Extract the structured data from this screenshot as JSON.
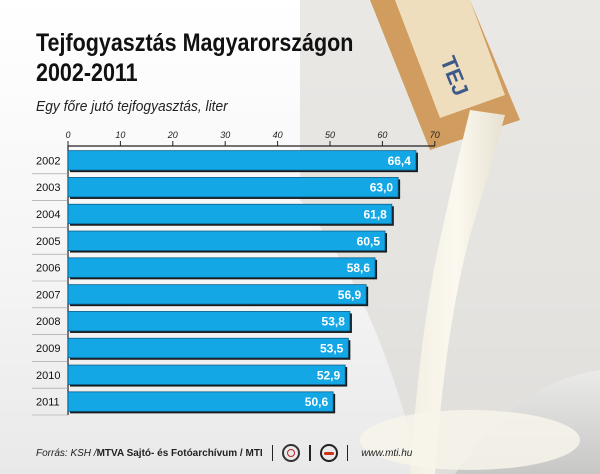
{
  "title_line1": "Tejfogyasztás Magyarországon",
  "title_line2": "2002-2011",
  "subtitle": "Egy főre jutó tejfogyasztás, liter",
  "footer": {
    "source": "Forrás: KSH / ",
    "credit": "MTVA Sajtó- és Fotóarchívum / MTI",
    "url": "www.mti.hu",
    "logo1_label": "MTVA",
    "logo2_label": "MTI"
  },
  "background_text": "TEJ",
  "colors": {
    "bar": "#13a7e6",
    "bar_edge": "#0a5f8a",
    "shadow": "#1a1a1a",
    "axis": "#222222"
  },
  "chart_data": {
    "type": "bar",
    "orientation": "horizontal",
    "categories": [
      "2002",
      "2003",
      "2004",
      "2005",
      "2006",
      "2007",
      "2008",
      "2009",
      "2010",
      "2011"
    ],
    "values": [
      66.4,
      63.0,
      61.8,
      60.5,
      58.6,
      56.9,
      53.8,
      53.5,
      52.9,
      50.6
    ],
    "value_labels": [
      "66,4",
      "63,0",
      "61,8",
      "60,5",
      "58,6",
      "56,9",
      "53,8",
      "53,5",
      "52,9",
      "50,6"
    ],
    "x_ticks": [
      0,
      10,
      20,
      30,
      40,
      50,
      60,
      70
    ],
    "xlim": [
      0,
      70
    ],
    "axis_position": "top",
    "grid": false,
    "legend": "none"
  }
}
